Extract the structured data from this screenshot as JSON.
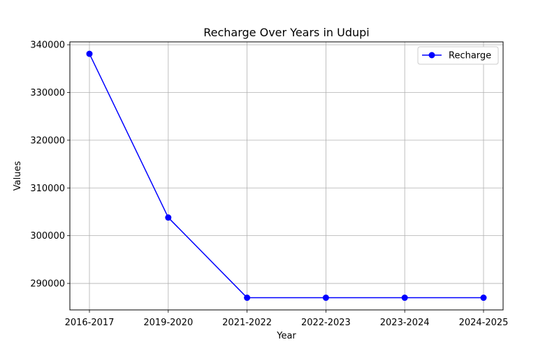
{
  "chart_data": {
    "type": "line",
    "title": "Recharge Over Years in Udupi",
    "xlabel": "Year",
    "ylabel": "Values",
    "categories": [
      "2016-2017",
      "2019-2020",
      "2021-2022",
      "2022-2023",
      "2023-2024",
      "2024-2025"
    ],
    "series": [
      {
        "name": "Recharge",
        "values": [
          338100,
          303800,
          287000,
          287000,
          287000,
          287000
        ],
        "color": "#0000ff",
        "marker": "circle"
      }
    ],
    "yticks": [
      290000,
      300000,
      310000,
      320000,
      330000,
      340000
    ],
    "ylim": [
      284450,
      340600
    ],
    "grid": true,
    "legend_position": "top-right"
  }
}
